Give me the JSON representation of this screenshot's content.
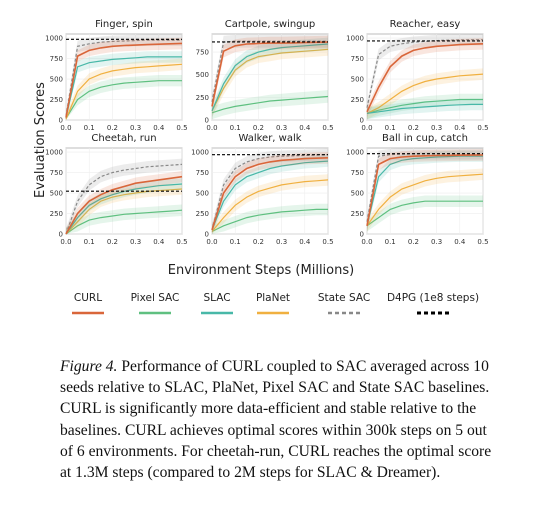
{
  "figure": {
    "ylabel": "Evaluation Scores",
    "xlabel": "Environment Steps (Millions)"
  },
  "legend": [
    {
      "name": "CURL",
      "color": "#d9663a",
      "style": "solid"
    },
    {
      "name": "Pixel SAC",
      "color": "#5fc080",
      "style": "solid"
    },
    {
      "name": "SLAC",
      "color": "#48b8a8",
      "style": "solid"
    },
    {
      "name": "PlaNet",
      "color": "#f0b040",
      "style": "solid"
    },
    {
      "name": "State SAC",
      "color": "#888888",
      "style": "dashed"
    },
    {
      "name": "D4PG (1e8 steps)",
      "color": "#000000",
      "style": "dashed"
    }
  ],
  "chart_data": [
    {
      "type": "line",
      "title": "Finger, spin",
      "x": [
        0.0,
        0.05,
        0.1,
        0.15,
        0.2,
        0.25,
        0.3,
        0.35,
        0.4,
        0.45,
        0.5
      ],
      "xticks": [
        "0.0",
        "0.1",
        "0.2",
        "0.3",
        "0.4",
        "0.5"
      ],
      "xlim": [
        0,
        0.5
      ],
      "yticks": [
        "0",
        "250",
        "500",
        "750",
        "1000"
      ],
      "ylim": [
        0,
        1050
      ],
      "series": [
        {
          "name": "CURL",
          "values": [
            30,
            780,
            850,
            880,
            900,
            910,
            915,
            920,
            925,
            930,
            935
          ]
        },
        {
          "name": "Pixel SAC",
          "values": [
            20,
            250,
            350,
            400,
            430,
            450,
            460,
            470,
            480,
            480,
            480
          ]
        },
        {
          "name": "SLAC",
          "values": [
            30,
            650,
            700,
            720,
            740,
            750,
            760,
            770,
            770,
            770,
            770
          ]
        },
        {
          "name": "PlaNet",
          "values": [
            10,
            350,
            500,
            560,
            600,
            620,
            640,
            650,
            660,
            670,
            680
          ]
        },
        {
          "name": "State SAC",
          "values": [
            50,
            900,
            930,
            950,
            960,
            965,
            970,
            975,
            975,
            975,
            975
          ]
        }
      ],
      "reference": {
        "name": "D4PG (1e8 steps)",
        "value": 985
      }
    },
    {
      "type": "line",
      "title": "Cartpole, swingup",
      "x": [
        0.0,
        0.05,
        0.1,
        0.15,
        0.2,
        0.25,
        0.3,
        0.35,
        0.4,
        0.45,
        0.5
      ],
      "xticks": [
        "0.0",
        "0.1",
        "0.2",
        "0.3",
        "0.4",
        "0.5"
      ],
      "xlim": [
        0,
        0.5
      ],
      "yticks": [
        "0",
        "250",
        "500",
        "750"
      ],
      "ylim": [
        0,
        950
      ],
      "series": [
        {
          "name": "CURL",
          "values": [
            150,
            760,
            820,
            840,
            845,
            850,
            850,
            852,
            855,
            858,
            860
          ]
        },
        {
          "name": "Pixel SAC",
          "values": [
            80,
            120,
            150,
            170,
            190,
            210,
            220,
            230,
            240,
            250,
            260
          ]
        },
        {
          "name": "SLAC",
          "values": [
            100,
            400,
            600,
            700,
            750,
            780,
            800,
            810,
            820,
            830,
            840
          ]
        },
        {
          "name": "PlaNet",
          "values": [
            100,
            350,
            550,
            650,
            700,
            720,
            740,
            750,
            760,
            770,
            780
          ]
        },
        {
          "name": "State SAC",
          "values": [
            200,
            860,
            870,
            870,
            870,
            870,
            870,
            870,
            870,
            870,
            870
          ]
        }
      ],
      "reference": {
        "name": "D4PG (1e8 steps)",
        "value": 862
      }
    },
    {
      "type": "line",
      "title": "Reacher, easy",
      "x": [
        0.0,
        0.05,
        0.1,
        0.15,
        0.2,
        0.25,
        0.3,
        0.35,
        0.4,
        0.45,
        0.5
      ],
      "xticks": [
        "0.0",
        "0.1",
        "0.2",
        "0.3",
        "0.4",
        "0.5"
      ],
      "xlim": [
        0,
        0.5
      ],
      "yticks": [
        "0",
        "250",
        "500",
        "750",
        "1000"
      ],
      "ylim": [
        0,
        1050
      ],
      "series": [
        {
          "name": "CURL",
          "values": [
            100,
            400,
            650,
            780,
            850,
            880,
            900,
            910,
            920,
            925,
            930
          ]
        },
        {
          "name": "Pixel SAC",
          "values": [
            80,
            120,
            150,
            180,
            200,
            220,
            230,
            240,
            250,
            250,
            250
          ]
        },
        {
          "name": "SLAC",
          "values": [
            80,
            100,
            120,
            140,
            150,
            160,
            170,
            180,
            185,
            190,
            190
          ]
        },
        {
          "name": "PlaNet",
          "values": [
            80,
            150,
            250,
            350,
            420,
            470,
            500,
            520,
            540,
            550,
            560
          ]
        },
        {
          "name": "State SAC",
          "values": [
            150,
            800,
            900,
            930,
            950,
            960,
            970,
            975,
            978,
            980,
            980
          ]
        }
      ],
      "reference": {
        "name": "D4PG (1e8 steps)",
        "value": 965
      }
    },
    {
      "type": "line",
      "title": "Cheetah, run",
      "x": [
        0.0,
        0.05,
        0.1,
        0.15,
        0.2,
        0.25,
        0.3,
        0.35,
        0.4,
        0.45,
        0.5
      ],
      "xticks": [
        "0.0",
        "0.1",
        "0.2",
        "0.3",
        "0.4",
        "0.5"
      ],
      "xlim": [
        0,
        0.5
      ],
      "yticks": [
        "0",
        "250",
        "500",
        "750",
        "1000"
      ],
      "ylim": [
        0,
        1050
      ],
      "series": [
        {
          "name": "CURL",
          "values": [
            0,
            250,
            400,
            480,
            540,
            580,
            620,
            640,
            660,
            680,
            700
          ]
        },
        {
          "name": "Pixel SAC",
          "values": [
            0,
            100,
            170,
            200,
            220,
            240,
            250,
            260,
            270,
            280,
            290
          ]
        },
        {
          "name": "SLAC",
          "values": [
            0,
            200,
            350,
            430,
            480,
            520,
            550,
            570,
            590,
            600,
            610
          ]
        },
        {
          "name": "PlaNet",
          "values": [
            0,
            150,
            300,
            400,
            450,
            480,
            500,
            520,
            530,
            540,
            550
          ]
        },
        {
          "name": "State SAC",
          "values": [
            0,
            400,
            600,
            700,
            750,
            780,
            800,
            820,
            830,
            840,
            850
          ]
        }
      ],
      "reference": {
        "name": "D4PG (1e8 steps)",
        "value": 523
      }
    },
    {
      "type": "line",
      "title": "Walker, walk",
      "x": [
        0.0,
        0.05,
        0.1,
        0.15,
        0.2,
        0.25,
        0.3,
        0.35,
        0.4,
        0.45,
        0.5
      ],
      "xticks": [
        "0.0",
        "0.1",
        "0.2",
        "0.3",
        "0.4",
        "0.5"
      ],
      "xlim": [
        0,
        0.5
      ],
      "yticks": [
        "0",
        "250",
        "500",
        "750",
        "1000"
      ],
      "ylim": [
        0,
        1050
      ],
      "series": [
        {
          "name": "CURL",
          "values": [
            50,
            500,
            700,
            800,
            850,
            880,
            900,
            910,
            920,
            925,
            930
          ]
        },
        {
          "name": "Pixel SAC",
          "values": [
            30,
            100,
            150,
            200,
            230,
            250,
            270,
            280,
            290,
            300,
            300
          ]
        },
        {
          "name": "SLAC",
          "values": [
            50,
            400,
            600,
            700,
            750,
            800,
            830,
            850,
            870,
            880,
            890
          ]
        },
        {
          "name": "PlaNet",
          "values": [
            30,
            200,
            350,
            450,
            520,
            560,
            600,
            620,
            640,
            650,
            660
          ]
        },
        {
          "name": "State SAC",
          "values": [
            50,
            600,
            800,
            880,
            920,
            940,
            950,
            955,
            960,
            965,
            970
          ]
        }
      ],
      "reference": {
        "name": "D4PG (1e8 steps)",
        "value": 968
      }
    },
    {
      "type": "line",
      "title": "Ball in cup, catch",
      "x": [
        0.0,
        0.05,
        0.1,
        0.15,
        0.2,
        0.25,
        0.3,
        0.35,
        0.4,
        0.45,
        0.5
      ],
      "xticks": [
        "0.0",
        "0.1",
        "0.2",
        "0.3",
        "0.4",
        "0.5"
      ],
      "xlim": [
        0,
        0.5
      ],
      "yticks": [
        "0",
        "250",
        "500",
        "750",
        "1000"
      ],
      "ylim": [
        0,
        1050
      ],
      "series": [
        {
          "name": "CURL",
          "values": [
            100,
            850,
            920,
            940,
            950,
            955,
            958,
            960,
            962,
            963,
            965
          ]
        },
        {
          "name": "Pixel SAC",
          "values": [
            100,
            200,
            300,
            350,
            380,
            400,
            400,
            400,
            400,
            400,
            400
          ]
        },
        {
          "name": "SLAC",
          "values": [
            100,
            700,
            850,
            900,
            920,
            930,
            940,
            945,
            950,
            950,
            950
          ]
        },
        {
          "name": "PlaNet",
          "values": [
            100,
            300,
            450,
            550,
            600,
            650,
            680,
            700,
            710,
            720,
            730
          ]
        },
        {
          "name": "State SAC",
          "values": [
            150,
            950,
            970,
            975,
            978,
            980,
            980,
            980,
            980,
            980,
            980
          ]
        }
      ],
      "reference": {
        "name": "D4PG (1e8 steps)",
        "value": 980
      }
    }
  ],
  "caption": {
    "label": "Figure 4.",
    "text": " Performance of CURL coupled to SAC averaged across 10 seeds relative to SLAC, PlaNet, Pixel SAC and State SAC baselines. CURL is significantly more data-efficient and stable relative to the baselines. CURL achieves optimal scores within 300k steps on 5 out of 6 environments. For cheetah-run, CURL reaches the optimal score at 1.3M steps (compared to 2M steps for SLAC & Dreamer)."
  }
}
